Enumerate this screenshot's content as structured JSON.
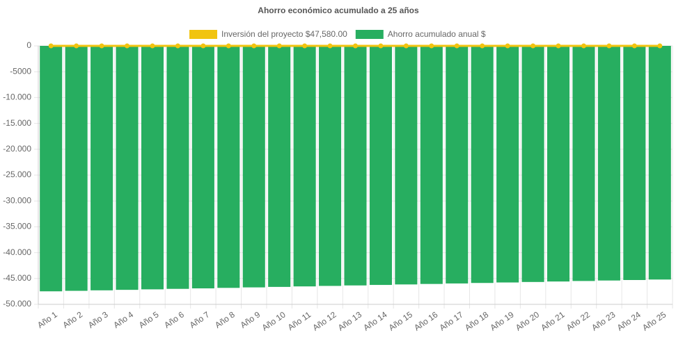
{
  "chart_data": {
    "type": "bar",
    "title": "Ahorro económico acumulado a 25 años",
    "categories": [
      "Año 1",
      "Año 2",
      "Año 3",
      "Año 4",
      "Año 5",
      "Año 6",
      "Año 7",
      "Año 8",
      "Año 9",
      "Año 10",
      "Año 11",
      "Año 12",
      "Año 13",
      "Año 14",
      "Año 15",
      "Año 16",
      "Año 17",
      "Año 18",
      "Año 19",
      "Año 20",
      "Año 21",
      "Año 22",
      "Año 23",
      "Año 24",
      "Año 25"
    ],
    "series": [
      {
        "name": "Inversión del proyecto $47,580.00",
        "color": "#f1c40f",
        "type": "line",
        "values": [
          0,
          0,
          0,
          0,
          0,
          0,
          0,
          0,
          0,
          0,
          0,
          0,
          0,
          0,
          0,
          0,
          0,
          0,
          0,
          0,
          0,
          0,
          0,
          0,
          0
        ]
      },
      {
        "name": "Ahorro acumulado anual $",
        "color": "#27ae60",
        "type": "bar",
        "values": [
          -47480,
          -47385,
          -47290,
          -47195,
          -47100,
          -47005,
          -46910,
          -46815,
          -46720,
          -46625,
          -46530,
          -46435,
          -46340,
          -46245,
          -46150,
          -46055,
          -45960,
          -45865,
          -45770,
          -45675,
          -45580,
          -45485,
          -45390,
          -45295,
          -45200
        ]
      }
    ],
    "ylim": [
      -50000,
      0
    ],
    "yticks": [
      0,
      -5000,
      {
        "value": -10000,
        "label": "-10.000"
      },
      {
        "value": -15000,
        "label": "-15.000"
      },
      {
        "value": -20000,
        "label": "-20.000"
      },
      {
        "value": -25000,
        "label": "-25.000"
      },
      {
        "value": -30000,
        "label": "-30.000"
      },
      {
        "value": -35000,
        "label": "-35.000"
      },
      {
        "value": -40000,
        "label": "-40.000"
      },
      {
        "value": -45000,
        "label": "-45.000"
      },
      {
        "value": -50000,
        "label": "-50.000"
      }
    ],
    "grid": true
  }
}
